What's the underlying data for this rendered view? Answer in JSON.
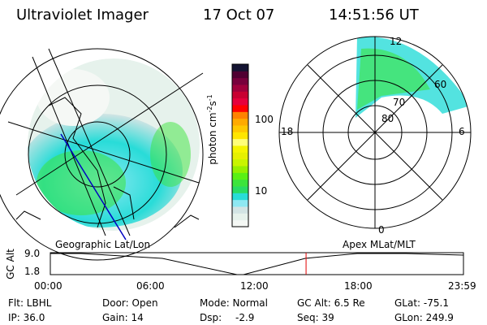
{
  "header": {
    "instrument": "Ultraviolet Imager",
    "date": "17 Oct 07",
    "time": "14:51:56 UT"
  },
  "colorbar": {
    "label": "photon cm",
    "label_sup1": "-2",
    "label_mid": "s",
    "label_sup2": "-1",
    "ticks": [
      "100",
      "10"
    ],
    "colors": [
      "#f5f8f5",
      "#e6f2ec",
      "#d2e4e4",
      "#8ee8f2",
      "#28dcd8",
      "#28dc64",
      "#3ce43c",
      "#5af014",
      "#96f000",
      "#c8f500",
      "#e6f000",
      "#f5f500",
      "#ffff78",
      "#ffe600",
      "#ffc800",
      "#ffaa00",
      "#ff8200",
      "#ff0000",
      "#e6003c",
      "#c80032",
      "#a0003c",
      "#78003c",
      "#500032",
      "#141432"
    ]
  },
  "polar_plot": {
    "lat_labels": [
      "80",
      "70",
      "60"
    ],
    "mlt_labels": {
      "top": "12",
      "left": "18",
      "right": "6",
      "bottom": "0"
    }
  },
  "altitude_plot": {
    "left_label": "Geographic Lat/Lon",
    "right_label": "Apex MLat/MLT",
    "y_label": "GC Alt",
    "y_ticks": [
      "9.0",
      "1.8"
    ],
    "x_ticks": [
      "00:00",
      "06:00",
      "12:00",
      "18:00",
      "23:59"
    ],
    "current_time_fraction": 0.619
  },
  "status": {
    "filter": "Flt: LBHL",
    "ip": "IP: 36.0",
    "door": "Door: Open",
    "gain": "Gain: 14",
    "mode": "Mode: Normal",
    "dsp_label": "Dsp:",
    "dsp_value": "-2.9",
    "gc_alt": "GC Alt: 6.5 Re",
    "seq": "Seq: 39",
    "glat": "GLat: -75.1",
    "glon": "GLon: 249.9"
  }
}
